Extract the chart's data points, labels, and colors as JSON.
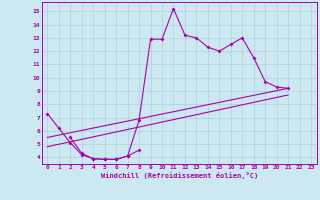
{
  "background_color": "#cce8f0",
  "grid_color": "#b0d0dc",
  "line_color": "#aa00aa",
  "xlabel": "Windchill (Refroidissement éolien,°C)",
  "xlim": [
    -0.5,
    23.5
  ],
  "ylim": [
    3.5,
    15.7
  ],
  "xticks": [
    0,
    1,
    2,
    3,
    4,
    5,
    6,
    7,
    8,
    9,
    10,
    11,
    12,
    13,
    14,
    15,
    16,
    17,
    18,
    19,
    20,
    21,
    22,
    23
  ],
  "yticks": [
    4,
    5,
    6,
    7,
    8,
    9,
    10,
    11,
    12,
    13,
    14,
    15
  ],
  "line1_x": [
    0,
    1,
    2,
    3,
    4,
    5,
    6,
    7,
    8,
    9,
    10,
    11,
    12,
    13,
    14,
    15,
    16,
    17,
    18,
    19,
    20,
    21
  ],
  "line1_y": [
    7.3,
    6.2,
    5.1,
    4.2,
    3.9,
    3.85,
    3.85,
    4.1,
    6.8,
    12.9,
    12.9,
    15.2,
    13.2,
    13.0,
    12.3,
    12.0,
    12.5,
    13.0,
    11.5,
    9.7,
    9.3,
    9.2
  ],
  "line2_x": [
    2,
    3,
    4,
    5,
    6,
    7,
    8
  ],
  "line2_y": [
    5.5,
    4.3,
    3.9,
    3.85,
    3.85,
    4.1,
    4.55
  ],
  "line3_x": [
    0,
    21
  ],
  "line3_y": [
    5.5,
    9.2
  ],
  "line4_x": [
    0,
    21
  ],
  "line4_y": [
    4.8,
    8.7
  ]
}
